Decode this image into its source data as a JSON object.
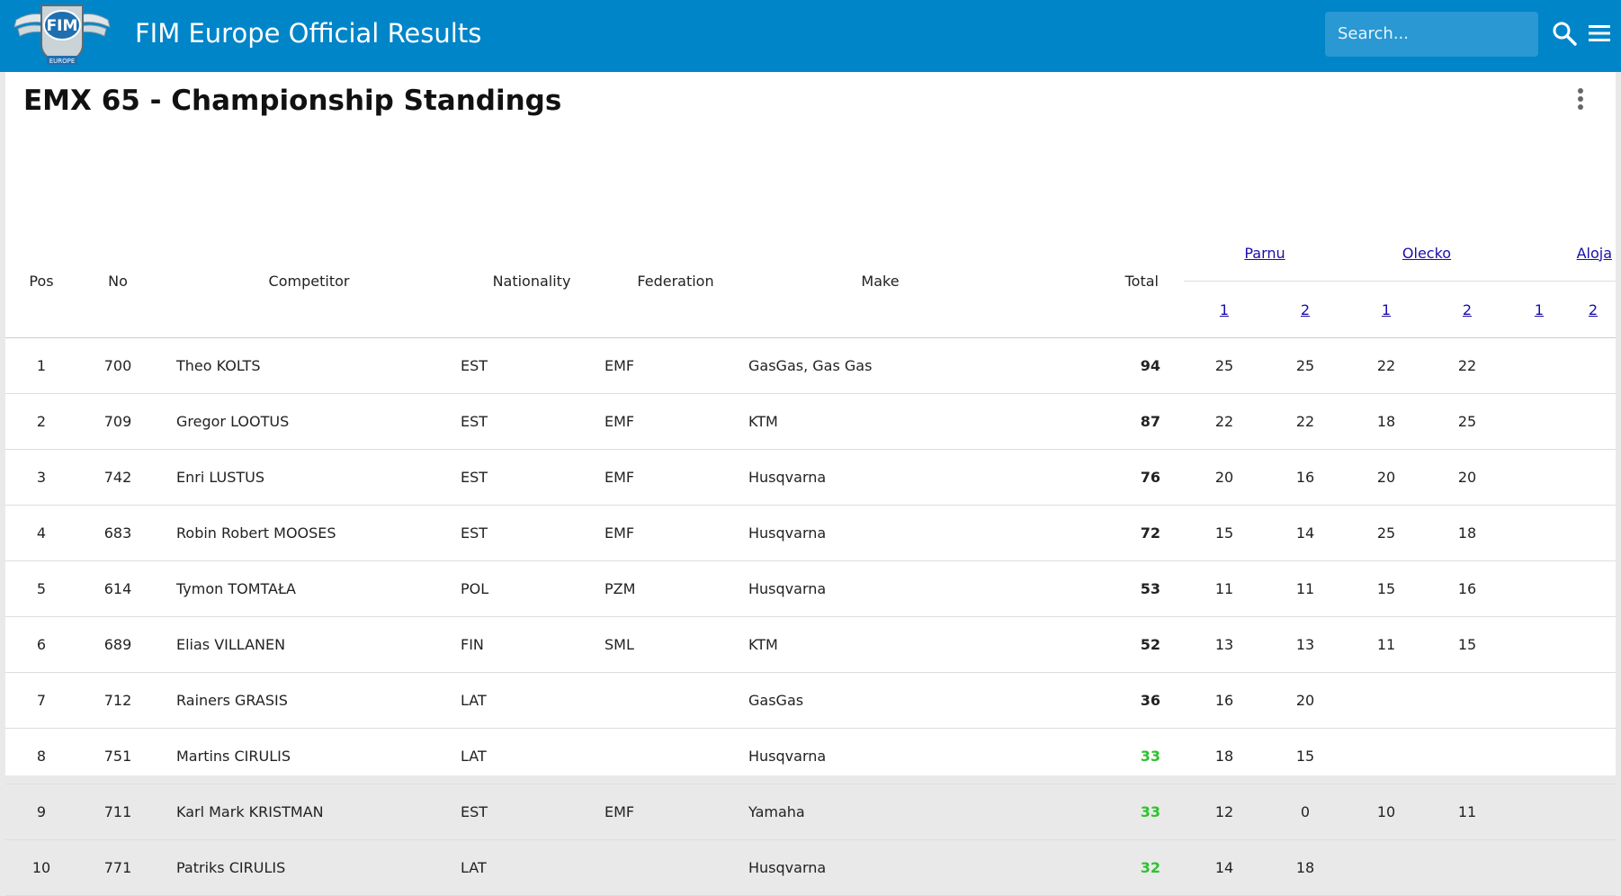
{
  "header": {
    "app_title": "FIM Europe Official Results",
    "logo_text": "FIM",
    "logo_subtext": "EUROPE",
    "search_placeholder": "Search...",
    "brand_color": "#0085c8",
    "search_icon": "search-icon",
    "menu_icon": "hamburger-menu-icon"
  },
  "page": {
    "title": "EMX 65 - Championship Standings",
    "more_icon": "more-vert-icon"
  },
  "table": {
    "headers": {
      "pos": "Pos",
      "no": "No",
      "competitor": "Competitor",
      "nationality": "Nationality",
      "federation": "Federation",
      "make": "Make",
      "total": "Total"
    },
    "rounds": [
      {
        "name": "Parnu",
        "races": [
          "1",
          "2"
        ]
      },
      {
        "name": "Olecko",
        "races": [
          "1",
          "2"
        ]
      },
      {
        "name": "Aloja",
        "races": [
          "1",
          "2"
        ]
      }
    ],
    "highlight_color": "#2fc12f",
    "rows": [
      {
        "pos": "1",
        "no": "700",
        "name": "Theo KOLTS",
        "nat": "EST",
        "fed": "EMF",
        "make": "GasGas, Gas Gas",
        "total": "94",
        "green": false,
        "pts": [
          "25",
          "25",
          "22",
          "22",
          "",
          ""
        ]
      },
      {
        "pos": "2",
        "no": "709",
        "name": "Gregor LOOTUS",
        "nat": "EST",
        "fed": "EMF",
        "make": "KTM",
        "total": "87",
        "green": false,
        "pts": [
          "22",
          "22",
          "18",
          "25",
          "",
          ""
        ]
      },
      {
        "pos": "3",
        "no": "742",
        "name": "Enri LUSTUS",
        "nat": "EST",
        "fed": "EMF",
        "make": "Husqvarna",
        "total": "76",
        "green": false,
        "pts": [
          "20",
          "16",
          "20",
          "20",
          "",
          ""
        ]
      },
      {
        "pos": "4",
        "no": "683",
        "name": "Robin Robert MOOSES",
        "nat": "EST",
        "fed": "EMF",
        "make": "Husqvarna",
        "total": "72",
        "green": false,
        "pts": [
          "15",
          "14",
          "25",
          "18",
          "",
          ""
        ]
      },
      {
        "pos": "5",
        "no": "614",
        "name": "Tymon TOMTAŁA",
        "nat": "POL",
        "fed": "PZM",
        "make": "Husqvarna",
        "total": "53",
        "green": false,
        "pts": [
          "11",
          "11",
          "15",
          "16",
          "",
          ""
        ]
      },
      {
        "pos": "6",
        "no": "689",
        "name": "Elias VILLANEN",
        "nat": "FIN",
        "fed": "SML",
        "make": "KTM",
        "total": "52",
        "green": false,
        "pts": [
          "13",
          "13",
          "11",
          "15",
          "",
          ""
        ]
      },
      {
        "pos": "7",
        "no": "712",
        "name": "Rainers GRASIS",
        "nat": "LAT",
        "fed": "",
        "make": "GasGas",
        "total": "36",
        "green": false,
        "pts": [
          "16",
          "20",
          "",
          "",
          "",
          ""
        ]
      },
      {
        "pos": "8",
        "no": "751",
        "name": "Martins CIRULIS",
        "nat": "LAT",
        "fed": "",
        "make": "Husqvarna",
        "total": "33",
        "green": true,
        "pts": [
          "18",
          "15",
          "",
          "",
          "",
          ""
        ]
      },
      {
        "pos": "9",
        "no": "711",
        "name": "Karl Mark KRISTMAN",
        "nat": "EST",
        "fed": "EMF",
        "make": "Yamaha",
        "total": "33",
        "green": true,
        "pts": [
          "12",
          "0",
          "10",
          "11",
          "",
          ""
        ]
      },
      {
        "pos": "10",
        "no": "771",
        "name": "Patriks CIRULIS",
        "nat": "LAT",
        "fed": "",
        "make": "Husqvarna",
        "total": "32",
        "green": true,
        "pts": [
          "14",
          "18",
          "",
          "",
          "",
          ""
        ]
      }
    ]
  }
}
